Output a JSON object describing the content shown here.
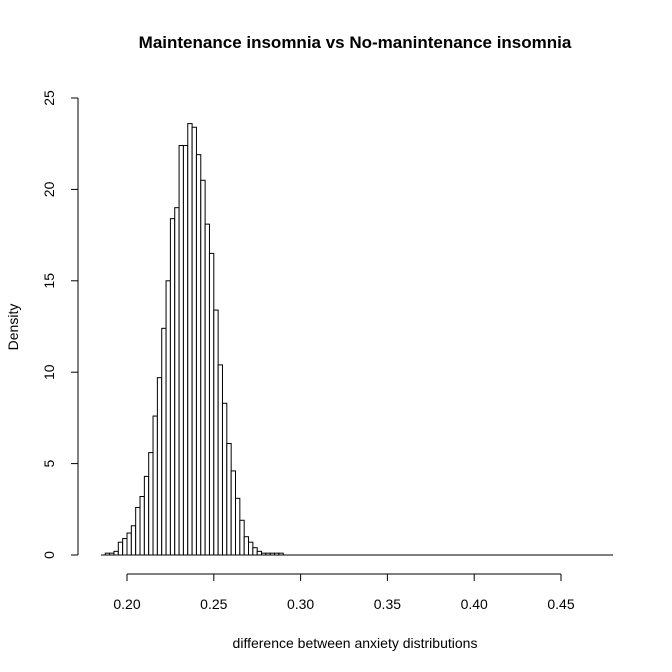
{
  "chart_data": {
    "type": "bar",
    "title": "Maintenance insomnia vs No-manintenance insomnia",
    "xlabel": "difference between anxiety distributions",
    "ylabel": "Density",
    "xlim": [
      0.185,
      0.48
    ],
    "ylim": [
      0,
      25
    ],
    "xticks": [
      0.2,
      0.25,
      0.3,
      0.35,
      0.4,
      0.45
    ],
    "xtick_labels": [
      "0.20",
      "0.25",
      "0.30",
      "0.35",
      "0.40",
      "0.45"
    ],
    "yticks": [
      0,
      5,
      10,
      15,
      20,
      25
    ],
    "ytick_labels": [
      "0",
      "5",
      "10",
      "15",
      "20",
      "25"
    ],
    "bin_width": 0.0025,
    "bins_start": 0.1875,
    "values": [
      0.1,
      0.1,
      0.2,
      0.7,
      0.9,
      1.2,
      1.6,
      2.6,
      3.2,
      4.3,
      5.6,
      7.6,
      9.7,
      12.4,
      15.0,
      18.4,
      19.0,
      22.4,
      22.4,
      23.6,
      23.4,
      21.9,
      20.5,
      18.1,
      16.5,
      13.4,
      10.4,
      8.3,
      6.1,
      4.6,
      3.1,
      1.9,
      1.0,
      0.7,
      0.4,
      0.2,
      0.1,
      0.1,
      0.1,
      0.1,
      0.1
    ]
  }
}
